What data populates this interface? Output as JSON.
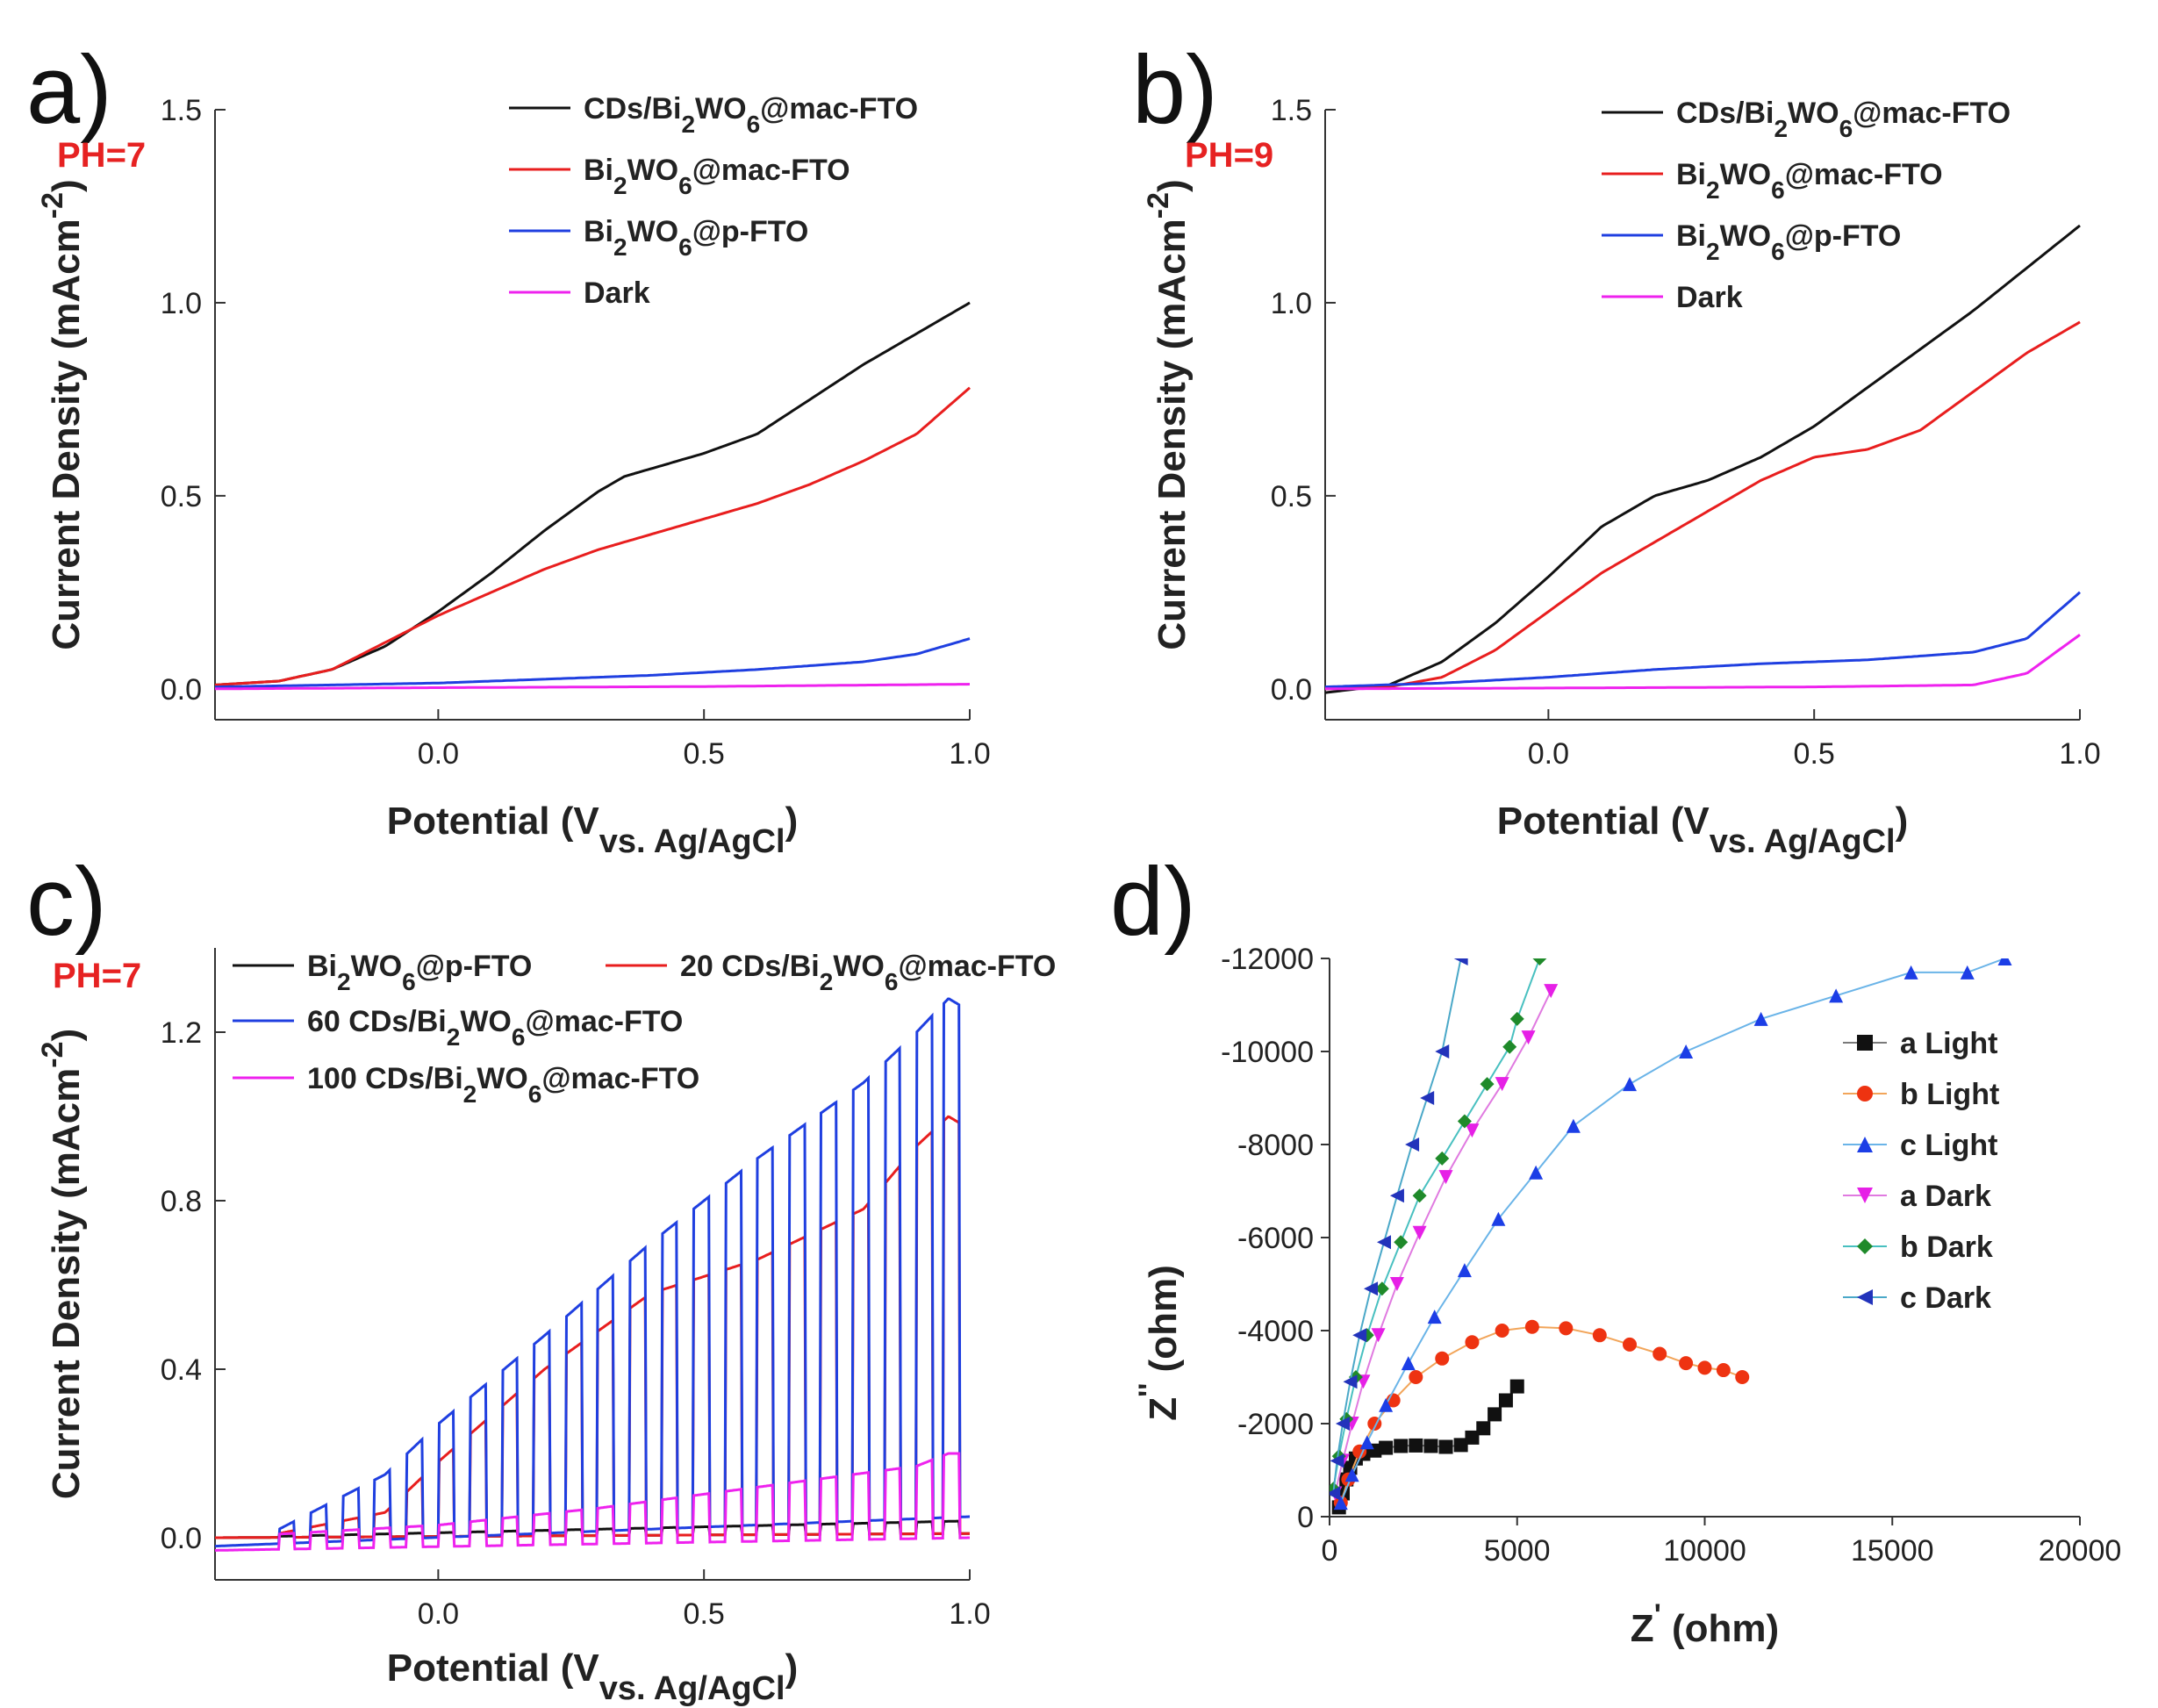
{
  "chart_data": [
    {
      "panel": "a",
      "type": "line",
      "annotation": "PH=7",
      "xlabel": "Potential (V",
      "xlabel_sub": "vs. Ag/AgCl",
      "xlabel_close": ")",
      "ylabel": "Current Density (mAcm",
      "ylabel_sup": "-2",
      "ylabel_close": ")",
      "xlim": [
        -0.42,
        1.0
      ],
      "ylim": [
        -0.08,
        1.5
      ],
      "xticks": [
        0.0,
        0.5,
        1.0
      ],
      "xtick_labels": [
        "0.0",
        "0.5",
        "1.0"
      ],
      "yticks": [
        0.0,
        0.5,
        1.0,
        1.5
      ],
      "ytick_labels": [
        "0.0",
        "0.5",
        "1.0",
        "1.5"
      ],
      "series": [
        {
          "name": "CDs/Bi",
          "name_sub": "2",
          "name_mid": "WO",
          "name_sub2": "6",
          "name_end": "@mac-FTO",
          "color": "#111111",
          "x": [
            -0.42,
            -0.3,
            -0.2,
            -0.1,
            0.0,
            0.1,
            0.2,
            0.3,
            0.35,
            0.4,
            0.5,
            0.6,
            0.7,
            0.8,
            0.9,
            1.0
          ],
          "y": [
            0.01,
            0.02,
            0.05,
            0.11,
            0.2,
            0.3,
            0.41,
            0.51,
            0.55,
            0.57,
            0.61,
            0.66,
            0.75,
            0.84,
            0.92,
            1.0
          ]
        },
        {
          "name": "Bi",
          "name_sub": "2",
          "name_mid": "WO",
          "name_sub2": "6",
          "name_end": "@mac-FTO",
          "color": "#e81e1e",
          "x": [
            -0.42,
            -0.3,
            -0.2,
            -0.1,
            0.0,
            0.1,
            0.2,
            0.3,
            0.4,
            0.5,
            0.6,
            0.7,
            0.8,
            0.9,
            1.0
          ],
          "y": [
            0.01,
            0.02,
            0.05,
            0.12,
            0.19,
            0.25,
            0.31,
            0.36,
            0.4,
            0.44,
            0.48,
            0.53,
            0.59,
            0.66,
            0.78
          ]
        },
        {
          "name": "Bi",
          "name_sub": "2",
          "name_mid": "WO",
          "name_sub2": "6",
          "name_end": "@p-FTO",
          "color": "#1f3fe0",
          "x": [
            -0.42,
            -0.2,
            0.0,
            0.2,
            0.4,
            0.6,
            0.8,
            0.9,
            1.0
          ],
          "y": [
            0.005,
            0.01,
            0.015,
            0.025,
            0.035,
            0.05,
            0.07,
            0.09,
            0.13
          ]
        },
        {
          "name": "Dark",
          "name_sub": "",
          "name_mid": "",
          "name_sub2": "",
          "name_end": "",
          "color": "#ee22ee",
          "x": [
            -0.42,
            0.0,
            0.5,
            1.0
          ],
          "y": [
            0.0,
            0.003,
            0.006,
            0.012
          ]
        }
      ]
    },
    {
      "panel": "b",
      "type": "line",
      "annotation": "PH=9",
      "xlabel": "Potential (V",
      "xlabel_sub": "vs. Ag/AgCl",
      "xlabel_close": ")",
      "ylabel": "Current Density (mAcm",
      "ylabel_sup": "-2",
      "ylabel_close": ")",
      "xlim": [
        -0.42,
        1.0
      ],
      "ylim": [
        -0.08,
        1.5
      ],
      "xticks": [
        0.0,
        0.5,
        1.0
      ],
      "xtick_labels": [
        "0.0",
        "0.5",
        "1.0"
      ],
      "yticks": [
        0.0,
        0.5,
        1.0,
        1.5
      ],
      "ytick_labels": [
        "0.0",
        "0.5",
        "1.0",
        "1.5"
      ],
      "series": [
        {
          "name": "CDs/Bi",
          "name_sub": "2",
          "name_mid": "WO",
          "name_sub2": "6",
          "name_end": "@mac-FTO",
          "color": "#111111",
          "x": [
            -0.42,
            -0.3,
            -0.2,
            -0.1,
            0.0,
            0.1,
            0.2,
            0.3,
            0.4,
            0.5,
            0.6,
            0.7,
            0.8,
            0.9,
            1.0
          ],
          "y": [
            -0.01,
            0.01,
            0.07,
            0.17,
            0.29,
            0.42,
            0.5,
            0.54,
            0.6,
            0.68,
            0.78,
            0.88,
            0.98,
            1.09,
            1.2
          ]
        },
        {
          "name": "Bi",
          "name_sub": "2",
          "name_mid": "WO",
          "name_sub2": "6",
          "name_end": "@mac-FTO",
          "color": "#e81e1e",
          "x": [
            -0.42,
            -0.3,
            -0.2,
            -0.1,
            0.0,
            0.1,
            0.2,
            0.3,
            0.4,
            0.5,
            0.6,
            0.7,
            0.8,
            0.9,
            1.0
          ],
          "y": [
            0.0,
            0.005,
            0.03,
            0.1,
            0.2,
            0.3,
            0.38,
            0.46,
            0.54,
            0.6,
            0.62,
            0.67,
            0.77,
            0.87,
            0.95
          ]
        },
        {
          "name": "Bi",
          "name_sub": "2",
          "name_mid": "WO",
          "name_sub2": "6",
          "name_end": "@p-FTO",
          "color": "#1f3fe0",
          "x": [
            -0.42,
            -0.2,
            0.0,
            0.2,
            0.4,
            0.6,
            0.8,
            0.9,
            1.0
          ],
          "y": [
            0.005,
            0.015,
            0.03,
            0.05,
            0.065,
            0.075,
            0.095,
            0.13,
            0.25
          ]
        },
        {
          "name": "Dark",
          "name_sub": "",
          "name_mid": "",
          "name_sub2": "",
          "name_end": "",
          "color": "#ee22ee",
          "x": [
            -0.42,
            0.0,
            0.5,
            0.8,
            0.9,
            1.0
          ],
          "y": [
            0.0,
            0.002,
            0.005,
            0.01,
            0.04,
            0.14
          ]
        }
      ]
    },
    {
      "panel": "c",
      "type": "line",
      "annotation": "PH=7",
      "xlabel": "Potential (V",
      "xlabel_sub": "vs. Ag/AgCl",
      "xlabel_close": ")",
      "ylabel": "Current Density (mAcm",
      "ylabel_sup": "-2",
      "ylabel_close": ")",
      "xlim": [
        -0.42,
        1.0
      ],
      "ylim": [
        -0.1,
        1.4
      ],
      "xticks": [
        0.0,
        0.5,
        1.0
      ],
      "xtick_labels": [
        "0.0",
        "0.5",
        "1.0"
      ],
      "yticks": [
        0.0,
        0.4,
        0.8,
        1.2
      ],
      "ytick_labels": [
        "0.0",
        "0.4",
        "0.8",
        "1.2"
      ],
      "chopped": true,
      "chop_on": [
        -0.3,
        -0.24,
        -0.18,
        -0.12,
        -0.06,
        0.0,
        0.06,
        0.12,
        0.18,
        0.24,
        0.3,
        0.36,
        0.42,
        0.48,
        0.54,
        0.6,
        0.66,
        0.72,
        0.78,
        0.84,
        0.9,
        0.95
      ],
      "series": [
        {
          "name": "Bi",
          "name_sub": "2",
          "name_mid": "WO",
          "name_sub2": "6",
          "name_end": "@p-FTO",
          "color": "#111111",
          "x": [
            -0.42,
            1.0
          ],
          "y": [
            0.0,
            0.01
          ],
          "on_x": [
            -0.42,
            1.0
          ],
          "on_y": [
            0.0,
            0.04
          ]
        },
        {
          "name": "20 CDs/Bi",
          "name_sub": "2",
          "name_mid": "WO",
          "name_sub2": "6",
          "name_end": "@mac-FTO",
          "color": "#e81e1e",
          "x": [
            -0.42,
            1.0
          ],
          "y": [
            0.0,
            0.01
          ],
          "on_x": [
            -0.3,
            -0.1,
            0.0,
            0.2,
            0.4,
            0.6,
            0.8,
            0.9,
            0.96,
            1.0
          ],
          "on_y": [
            0.01,
            0.06,
            0.18,
            0.4,
            0.58,
            0.66,
            0.78,
            0.93,
            1.0,
            0.97
          ]
        },
        {
          "name": "60 CDs/Bi",
          "name_sub": "2",
          "name_mid": "WO",
          "name_sub2": "6",
          "name_end": "@mac-FTO",
          "color": "#1f3fe0",
          "x": [
            -0.42,
            1.0
          ],
          "y": [
            -0.02,
            0.05
          ],
          "on_x": [
            -0.3,
            -0.1,
            0.0,
            0.2,
            0.4,
            0.6,
            0.8,
            0.9,
            0.96,
            1.0
          ],
          "on_y": [
            0.02,
            0.15,
            0.27,
            0.48,
            0.7,
            0.9,
            1.08,
            1.2,
            1.28,
            1.25
          ]
        },
        {
          "name": "100 CDs/Bi",
          "name_sub": "2",
          "name_mid": "WO",
          "name_sub2": "6",
          "name_end": "@mac-FTO",
          "color": "#ee22ee",
          "x": [
            -0.42,
            1.0
          ],
          "y": [
            -0.03,
            0.0
          ],
          "on_x": [
            -0.42,
            0.0,
            0.3,
            0.6,
            0.9,
            0.96,
            1.0
          ],
          "on_y": [
            0.0,
            0.03,
            0.07,
            0.12,
            0.17,
            0.2,
            0.2
          ]
        }
      ]
    },
    {
      "panel": "d",
      "type": "scatter",
      "xlabel": "Z",
      "xlabel_sup": "'",
      "xlabel_unit": " (ohm)",
      "ylabel": "Z",
      "ylabel_sup": "''",
      "ylabel_unit": " (ohm)",
      "xlim": [
        0,
        20000
      ],
      "ylim": [
        0,
        -12000
      ],
      "xticks": [
        0,
        5000,
        10000,
        15000,
        20000
      ],
      "xtick_labels": [
        "0",
        "5000",
        "10000",
        "15000",
        "20000"
      ],
      "yticks": [
        0,
        -2000,
        -4000,
        -6000,
        -8000,
        -10000,
        -12000
      ],
      "ytick_labels": [
        "0",
        "-2000",
        "-4000",
        "-6000",
        "-8000",
        "-10000",
        "-12000"
      ],
      "series": [
        {
          "name": "a Light",
          "marker": "square",
          "color": "#111111",
          "line": "#7a7a7a",
          "x": [
            250,
            350,
            450,
            550,
            700,
            900,
            1200,
            1500,
            1900,
            2300,
            2700,
            3100,
            3500,
            3800,
            4100,
            4400,
            4700,
            5000
          ],
          "y": [
            -200,
            -500,
            -800,
            -1050,
            -1250,
            -1350,
            -1420,
            -1480,
            -1520,
            -1530,
            -1520,
            -1500,
            -1540,
            -1700,
            -1900,
            -2200,
            -2500,
            -2800
          ]
        },
        {
          "name": "b Light",
          "marker": "circle",
          "color": "#ee3311",
          "line": "#f2a55a",
          "x": [
            300,
            500,
            800,
            1200,
            1700,
            2300,
            3000,
            3800,
            4600,
            5400,
            6300,
            7200,
            8000,
            8800,
            9500,
            10000,
            10500,
            11000
          ],
          "y": [
            -300,
            -800,
            -1400,
            -2000,
            -2500,
            -3000,
            -3400,
            -3750,
            -4000,
            -4080,
            -4050,
            -3900,
            -3700,
            -3500,
            -3300,
            -3200,
            -3150,
            -3000
          ]
        },
        {
          "name": "c Light",
          "marker": "triangle-up",
          "color": "#1c3ee6",
          "line": "#6ab4e8",
          "x": [
            300,
            600,
            1000,
            1500,
            2100,
            2800,
            3600,
            4500,
            5500,
            6500,
            8000,
            9500,
            11500,
            13500,
            15500,
            17000,
            18000
          ],
          "y": [
            -300,
            -900,
            -1600,
            -2400,
            -3300,
            -4300,
            -5300,
            -6400,
            -7400,
            -8400,
            -9300,
            -10000,
            -10700,
            -11200,
            -11700,
            -11700,
            -12000
          ]
        },
        {
          "name": "a Dark",
          "marker": "triangle-down",
          "color": "#e620e6",
          "line": "#e07ae0",
          "x": [
            150,
            350,
            600,
            900,
            1300,
            1800,
            2400,
            3100,
            3800,
            4600,
            5300,
            5900
          ],
          "y": [
            -500,
            -1200,
            -2000,
            -2900,
            -3900,
            -5000,
            -6100,
            -7300,
            -8300,
            -9300,
            -10300,
            -11300
          ]
        },
        {
          "name": "b Dark",
          "marker": "diamond",
          "color": "#1f8a2a",
          "line": "#48c0c0",
          "x": [
            100,
            250,
            450,
            700,
            1000,
            1400,
            1900,
            2400,
            3000,
            3600,
            4200,
            4800,
            5000,
            5600
          ],
          "y": [
            -600,
            -1300,
            -2100,
            -3000,
            -3900,
            -4900,
            -5900,
            -6900,
            -7700,
            -8500,
            -9300,
            -10100,
            -10700,
            -12000
          ]
        },
        {
          "name": "c Dark",
          "marker": "triangle-left",
          "color": "#2233bb",
          "line": "#4aa8c8",
          "x": [
            100,
            200,
            350,
            550,
            800,
            1100,
            1450,
            1800,
            2200,
            2600,
            3000,
            3500
          ],
          "y": [
            -500,
            -1200,
            -2000,
            -2900,
            -3900,
            -4900,
            -5900,
            -6900,
            -8000,
            -9000,
            -10000,
            -12000
          ]
        }
      ]
    }
  ]
}
